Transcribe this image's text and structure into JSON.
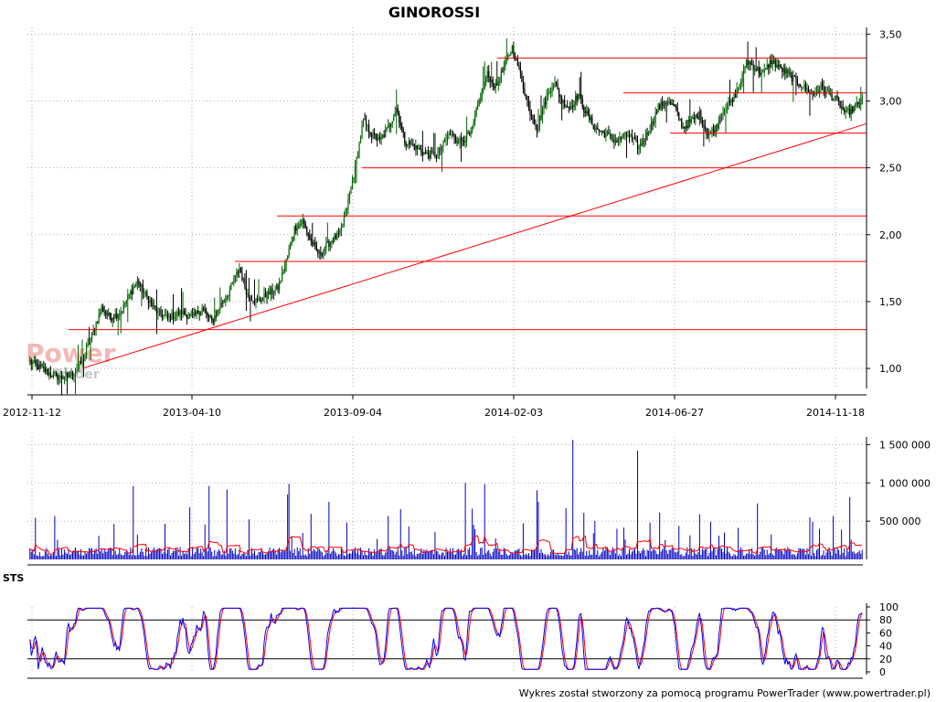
{
  "chart_data": [
    {
      "type": "candlestick",
      "title": "GINOROSSI",
      "x_dates": [
        "2012-11-12",
        "2013-04-10",
        "2013-09-04",
        "2014-02-03",
        "2014-06-27",
        "2014-11-18"
      ],
      "y_ticks": [
        "1,00",
        "1,50",
        "2,00",
        "2,50",
        "3,00",
        "3,50"
      ],
      "ylim": [
        0.85,
        3.55
      ],
      "price_path": [
        [
          0,
          1.05
        ],
        [
          8,
          1.0
        ],
        [
          15,
          0.96
        ],
        [
          22,
          0.93
        ],
        [
          30,
          0.95
        ],
        [
          38,
          1.05
        ],
        [
          45,
          1.25
        ],
        [
          52,
          1.45
        ],
        [
          58,
          1.38
        ],
        [
          66,
          1.42
        ],
        [
          72,
          1.55
        ],
        [
          78,
          1.65
        ],
        [
          84,
          1.55
        ],
        [
          92,
          1.42
        ],
        [
          100,
          1.38
        ],
        [
          110,
          1.42
        ],
        [
          118,
          1.38
        ],
        [
          125,
          1.45
        ],
        [
          132,
          1.35
        ],
        [
          140,
          1.5
        ],
        [
          146,
          1.6
        ],
        [
          152,
          1.75
        ],
        [
          158,
          1.55
        ],
        [
          165,
          1.5
        ],
        [
          172,
          1.55
        ],
        [
          180,
          1.6
        ],
        [
          186,
          1.8
        ],
        [
          192,
          2.05
        ],
        [
          198,
          2.1
        ],
        [
          204,
          1.95
        ],
        [
          210,
          1.85
        ],
        [
          218,
          1.95
        ],
        [
          225,
          2.0
        ],
        [
          230,
          2.2
        ],
        [
          236,
          2.5
        ],
        [
          242,
          2.85
        ],
        [
          248,
          2.75
        ],
        [
          254,
          2.7
        ],
        [
          260,
          2.8
        ],
        [
          266,
          2.95
        ],
        [
          272,
          2.7
        ],
        [
          280,
          2.65
        ],
        [
          288,
          2.6
        ],
        [
          296,
          2.6
        ],
        [
          304,
          2.75
        ],
        [
          312,
          2.7
        ],
        [
          320,
          2.75
        ],
        [
          326,
          3.0
        ],
        [
          332,
          3.2
        ],
        [
          338,
          3.1
        ],
        [
          344,
          3.25
        ],
        [
          350,
          3.4
        ],
        [
          356,
          3.2
        ],
        [
          362,
          2.95
        ],
        [
          368,
          2.8
        ],
        [
          374,
          3.0
        ],
        [
          380,
          3.15
        ],
        [
          386,
          3.0
        ],
        [
          392,
          2.95
        ],
        [
          398,
          3.05
        ],
        [
          404,
          2.9
        ],
        [
          410,
          2.8
        ],
        [
          418,
          2.75
        ],
        [
          426,
          2.7
        ],
        [
          434,
          2.75
        ],
        [
          442,
          2.65
        ],
        [
          450,
          2.8
        ],
        [
          456,
          2.95
        ],
        [
          462,
          3.0
        ],
        [
          468,
          2.95
        ],
        [
          474,
          2.8
        ],
        [
          480,
          2.85
        ],
        [
          486,
          2.9
        ],
        [
          492,
          2.75
        ],
        [
          498,
          2.8
        ],
        [
          504,
          2.95
        ],
        [
          510,
          3.0
        ],
        [
          516,
          3.15
        ],
        [
          520,
          3.3
        ],
        [
          526,
          3.25
        ],
        [
          532,
          3.2
        ],
        [
          538,
          3.3
        ],
        [
          544,
          3.25
        ],
        [
          550,
          3.2
        ],
        [
          556,
          3.15
        ],
        [
          562,
          3.1
        ],
        [
          568,
          3.05
        ],
        [
          574,
          3.1
        ],
        [
          580,
          3.05
        ],
        [
          586,
          3.0
        ],
        [
          592,
          2.9
        ],
        [
          598,
          2.95
        ],
        [
          604,
          3.0
        ]
      ],
      "annotations": {
        "horizontal_lines": [
          3.32,
          3.06,
          2.76,
          2.5,
          2.14,
          1.8,
          1.29
        ],
        "trend_line": [
          [
            1.0,
            0
          ],
          [
            2.83,
            1
          ]
        ]
      }
    },
    {
      "type": "bar",
      "title": "",
      "y_ticks": [
        "500 000",
        "1 000 000",
        "1 500 000"
      ],
      "ylim": [
        0,
        1600000
      ],
      "moving_average_color": "#ff0000",
      "bar_color": "#0000c0"
    },
    {
      "type": "line",
      "title": "STS",
      "y_ticks": [
        "0",
        "20",
        "40",
        "60",
        "80",
        "100"
      ],
      "ylim": [
        0,
        100
      ],
      "levels": [
        20,
        80
      ],
      "series": [
        {
          "color": "#0000ff"
        },
        {
          "color": "#ff0000"
        }
      ]
    }
  ],
  "watermark": {
    "line1": "Power",
    "line2": "Trader"
  },
  "footer": "Wykres został stworzony za pomocą programu PowerTrader (www.powertrader.pl)",
  "colors": {
    "candle_up": "#006400",
    "candle_down": "#000000",
    "lines": "#ff0000",
    "grid": "#999999",
    "volume": "#0000c0",
    "sts_k": "#0000ff",
    "sts_d": "#ff0000"
  }
}
